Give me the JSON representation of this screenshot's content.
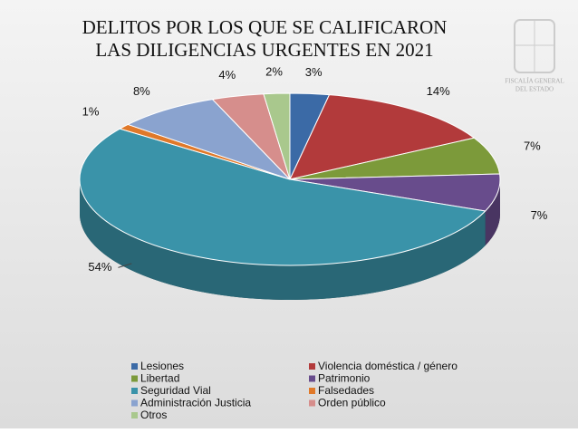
{
  "chart_data": {
    "type": "pie3d",
    "title": [
      "DELITOS POR LOS QUE SE CALIFICARON",
      "LAS DILIGENCIAS URGENTES EN 2021"
    ],
    "watermark": [
      "FISCALÍA GENERAL",
      "DEL ESTADO"
    ],
    "categories": [
      "Lesiones",
      "Violencia doméstica / género",
      "Libertad",
      "Patrimonio",
      "Seguridad Vial",
      "Falsedades",
      "Administración Justicia",
      "Orden público",
      "Otros"
    ],
    "values": [
      3,
      14,
      7,
      7,
      54,
      1,
      8,
      4,
      2
    ],
    "value_labels": [
      "3%",
      "14%",
      "7%",
      "7%",
      "54%",
      "1%",
      "8%",
      "4%",
      "2%"
    ],
    "colors": [
      "#3b6aa6",
      "#b23a3b",
      "#7c9a3a",
      "#684c8c",
      "#3a93a9",
      "#e0792a",
      "#8aa3cf",
      "#d68e8c",
      "#a9c88d"
    ],
    "legend": "bottom"
  }
}
